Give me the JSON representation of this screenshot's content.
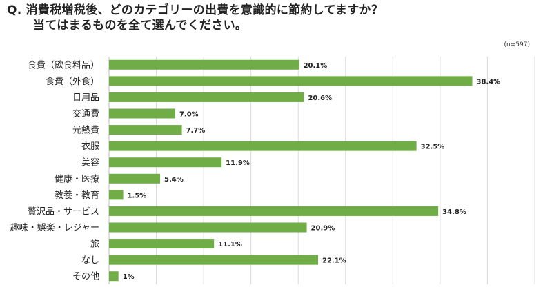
{
  "title": {
    "prefix": "Q.",
    "line1": "消費税増税後、どのカテゴリーの出費を意識的に節約してますか？",
    "line2": "当てはまるものを全て選んでください。"
  },
  "sample_note": "(n=597)",
  "colors": {
    "bar": "#70ad47",
    "grid": "#d9d9d9",
    "text": "#222222"
  },
  "chart_data": {
    "type": "bar",
    "orientation": "horizontal",
    "categories": [
      "食費（飲食料品）",
      "食費（外食）",
      "日用品",
      "交通費",
      "光熱費",
      "衣服",
      "美容",
      "健康・医療",
      "教養・教育",
      "贅沢品・サービス",
      "趣味・娯楽・レジャー",
      "旅",
      "なし",
      "その他"
    ],
    "values": [
      20.1,
      38.4,
      20.6,
      7.0,
      7.7,
      32.5,
      11.9,
      5.4,
      1.5,
      34.8,
      20.9,
      11.1,
      22.1,
      1.0
    ],
    "value_labels": [
      "20.1%",
      "38.4%",
      "20.6%",
      "7.0%",
      "7.7%",
      "32.5%",
      "11.9%",
      "5.4%",
      "1.5%",
      "34.8%",
      "20.9%",
      "11.1%",
      "22.1%",
      "1%"
    ],
    "xlim": [
      0,
      45
    ],
    "grid": true,
    "unit": "%"
  }
}
